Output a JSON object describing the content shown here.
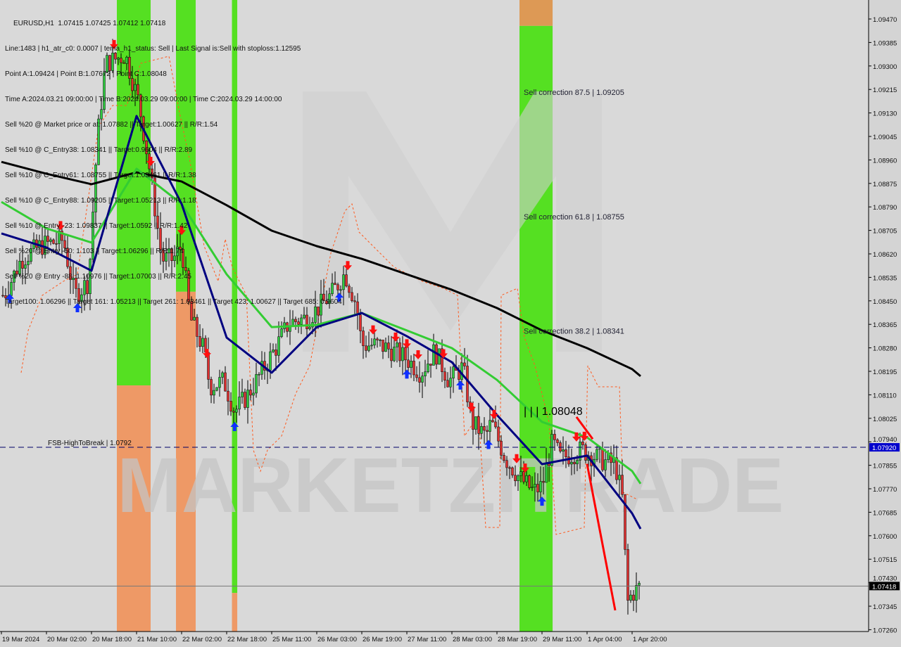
{
  "header": {
    "symbol_line": "EURUSD,H1  1.07415 1.07425 1.07412 1.07418",
    "info_lines": [
      "Line:1483 | h1_atr_c0: 0.0007 | tema_h1_status: Sell | Last Signal is:Sell with stoploss:1.12595",
      "Point A:1.09424 | Point B:1.07672 | Point C:1.08048",
      "Time A:2024.03.21 09:00:00 | Time B:2024.03.29 09:00:00 | Time C:2024.03.29 14:00:00",
      "Sell %20 @ Market price or at: 1.07882 || Target:1.00627 || R/R:1.54",
      "Sell %10 @ C_Entry38: 1.08341 || Target:0.9604 || R/R:2.89",
      "Sell %10 @ C_Entry61: 1.08755 || Target:1.03461 || R/R:1.38",
      "Sell %10 @ C_Entry88: 1.09205 || Target:1.05213 || R/R:1.18",
      "Sell %10 @ Entry -23: 1.09837 || Target:1.0592 || R/R:1.42",
      "Sell %20 @ Entry -50: 1.103 || Target:1.06296 || R/R:1.74",
      "Sell %20 @ Entry -88: 1.10976 || Target:1.07003 || R/R:2.45",
      "Target100: 1.06296 || Target 161: 1.05213 || Target 261: 1.03461 || Target 423: 1.00627 || Target 685: 0.9604"
    ]
  },
  "watermark": "MARKETZITRADE",
  "chart_data": {
    "type": "candlestick",
    "symbol": "EURUSD",
    "timeframe": "H1",
    "ylim": [
      1.0726,
      1.0951
    ],
    "y_ticks": [
      "1.09470",
      "1.09385",
      "1.09300",
      "1.09215",
      "1.09130",
      "1.09045",
      "1.08960",
      "1.08875",
      "1.08790",
      "1.08705",
      "1.08620",
      "1.08535",
      "1.08450",
      "1.08365",
      "1.08280",
      "1.08195",
      "1.08110",
      "1.08025",
      "1.07940",
      "1.07855",
      "1.07770",
      "1.07685",
      "1.07600",
      "1.07515",
      "1.07430",
      "1.07345",
      "1.07260"
    ],
    "x_ticks": [
      "19 Mar 2024",
      "20 Mar 02:00",
      "20 Mar 18:00",
      "21 Mar 10:00",
      "22 Mar 02:00",
      "22 Mar 18:00",
      "25 Mar 11:00",
      "26 Mar 03:00",
      "26 Mar 19:00",
      "27 Mar 11:00",
      "28 Mar 03:00",
      "28 Mar 19:00",
      "29 Mar 11:00",
      "1 Apr 04:00",
      "1 Apr 20:00"
    ],
    "grid": false,
    "price_path": [
      [
        "2024-03-19 11:00",
        1.0847
      ],
      [
        "2024-03-19 17:00",
        1.086
      ],
      [
        "2024-03-20 00:00",
        1.0865
      ],
      [
        "2024-03-20 08:00",
        1.0867
      ],
      [
        "2024-03-20 12:00",
        1.0847
      ],
      [
        "2024-03-20 17:00",
        1.0852
      ],
      [
        "2024-03-20 20:00",
        1.0903
      ],
      [
        "2024-03-20 23:00",
        1.0931
      ],
      [
        "2024-03-21 06:00",
        1.0934
      ],
      [
        "2024-03-21 11:00",
        1.0916
      ],
      [
        "2024-03-21 15:00",
        1.089
      ],
      [
        "2024-03-21 19:00",
        1.086
      ],
      [
        "2024-03-21 23:00",
        1.086
      ],
      [
        "2024-03-22 02:00",
        1.0865
      ],
      [
        "2024-03-22 05:00",
        1.0839
      ],
      [
        "2024-03-22 10:00",
        1.0827
      ],
      [
        "2024-03-22 12:00",
        1.0814
      ],
      [
        "2024-03-22 17:00",
        1.0816
      ],
      [
        "2024-03-22 21:00",
        1.0805
      ],
      [
        "2024-03-25 02:00",
        1.0811
      ],
      [
        "2024-03-25 07:00",
        1.0819
      ],
      [
        "2024-03-25 13:00",
        1.0829
      ],
      [
        "2024-03-25 17:00",
        1.0837
      ],
      [
        "2024-03-26 00:00",
        1.0839
      ],
      [
        "2024-03-26 08:00",
        1.0847
      ],
      [
        "2024-03-26 13:00",
        1.0855
      ],
      [
        "2024-03-26 17:00",
        1.0844
      ],
      [
        "2024-03-26 19:00",
        1.0829
      ],
      [
        "2024-03-27 01:00",
        1.0829
      ],
      [
        "2024-03-27 06:00",
        1.0827
      ],
      [
        "2024-03-27 11:00",
        1.0824
      ],
      [
        "2024-03-27 16:00",
        1.0819
      ],
      [
        "2024-03-27 21:00",
        1.0827
      ],
      [
        "2024-03-28 02:00",
        1.0816
      ],
      [
        "2024-03-28 07:00",
        1.0821
      ],
      [
        "2024-03-28 10:00",
        1.0801
      ],
      [
        "2024-03-28 15:00",
        1.0796
      ],
      [
        "2024-03-28 17:00",
        1.0801
      ],
      [
        "2024-03-28 22:00",
        1.0788
      ],
      [
        "2024-03-29 03:00",
        1.0781
      ],
      [
        "2024-03-29 08:00",
        1.0776
      ],
      [
        "2024-03-29 11:00",
        1.0778
      ],
      [
        "2024-03-29 15:00",
        1.0794
      ],
      [
        "2024-03-29 18:00",
        1.0788
      ],
      [
        "2024-04-01 02:00",
        1.0791
      ],
      [
        "2024-04-01 10:00",
        1.0787
      ],
      [
        "2024-04-01 14:00",
        1.0786
      ],
      [
        "2024-04-01 17:00",
        1.0771
      ],
      [
        "2024-04-01 18:00",
        1.0735
      ],
      [
        "2024-04-01 20:00",
        1.0739
      ],
      [
        "2024-04-01 23:00",
        1.07418
      ]
    ],
    "series": [
      {
        "color": "#000000",
        "values": [
          1.08953,
          1.0891,
          1.08872,
          1.08915,
          1.08882,
          1.08796,
          1.08704,
          1.08648,
          1.08602,
          1.08546,
          1.0849,
          1.08424,
          1.08343,
          1.08279,
          1.08203
        ]
      },
      {
        "color": "#33cc33",
        "values": [
          1.08808,
          1.08712,
          1.08661,
          1.08928,
          1.08801,
          1.08546,
          1.08355,
          1.08363,
          1.08406,
          1.08343,
          1.08279,
          1.08164,
          1.08012,
          1.07956,
          1.07834
        ]
      },
      {
        "color": "#000080",
        "values": [
          1.08694,
          1.08643,
          1.08559,
          1.09119,
          1.08801,
          1.08317,
          1.0819,
          1.08355,
          1.08406,
          1.08322,
          1.08228,
          1.08037,
          1.07859,
          1.0789,
          1.07681
        ]
      }
    ],
    "zones": [
      {
        "from": "2024-03-21 03:00",
        "to": "2024-03-21 15:00",
        "split": 1.08144,
        "upper_color": "#55e022",
        "lower_color": "#ee9966"
      },
      {
        "from": "2024-03-22 00:00",
        "to": "2024-03-22 07:00",
        "split": 1.08483,
        "upper_color": "#55e022",
        "lower_color": "#ee9966"
      },
      {
        "from": "2024-03-22 20:00",
        "to": "2024-03-22 22:00",
        "split": 1.07393,
        "upper_color": "#55e022",
        "lower_color": "#ee9966"
      },
      {
        "from": "2024-03-29 03:00",
        "to": "2024-03-29 15:00",
        "split": 1.09445,
        "upper_color": "#dd9955",
        "lower_color": "#55e022"
      }
    ],
    "levels": [
      {
        "label": "FSB-HighToBreak | 1.0792",
        "price": 1.0792,
        "tag": "1.07920",
        "color": "#0000cc",
        "style": "dashed"
      },
      {
        "label": "",
        "price": 1.07418,
        "tag": "1.07418",
        "color": "#000000",
        "style": "solid"
      }
    ],
    "annotations": [
      {
        "text": "Sell correction 87.5 | 1.09205",
        "price": 1.09205,
        "at": "2024-03-29 04:00"
      },
      {
        "text": "Sell correction 61.8 | 1.08755",
        "price": 1.08755,
        "at": "2024-03-29 04:00"
      },
      {
        "text": "Sell correction 38.2 | 1.08341",
        "price": 1.08341,
        "at": "2024-03-29 04:00"
      },
      {
        "text": "| | | 1.08048",
        "price": 1.08048,
        "at": "2024-03-29 04:00",
        "large": true
      }
    ],
    "sell_arrows": [
      "2024-03-20 07:00",
      "2024-03-21 02:00",
      "2024-03-21 15:00",
      "2024-03-22 02:00",
      "2024-03-22 11:00",
      "2024-03-26 14:00",
      "2024-03-26 23:00",
      "2024-03-27 07:00",
      "2024-03-27 11:00",
      "2024-03-27 15:00",
      "2024-03-28 00:00",
      "2024-03-28 10:00",
      "2024-03-28 18:00",
      "2024-03-29 02:00",
      "2024-03-29 05:00",
      "2024-04-01 00:00",
      "2024-04-01 03:00"
    ],
    "buy_arrows": [
      "2024-03-19 13:00",
      "2024-03-20 13:00",
      "2024-03-22 21:00",
      "2024-03-26 11:00",
      "2024-03-27 11:00",
      "2024-03-28 06:00",
      "2024-03-28 16:00",
      "2024-03-29 11:00"
    ],
    "trend_lines": [
      {
        "from": [
          "2024-04-01 00:00",
          1.0803
        ],
        "to": [
          "2024-04-01 06:00",
          1.0795
        ],
        "color": "#ff0000"
      },
      {
        "from": [
          "2024-04-01 04:00",
          1.0786
        ],
        "to": [
          "2024-04-01 14:00",
          1.0733
        ],
        "color": "#ff0000"
      }
    ]
  }
}
